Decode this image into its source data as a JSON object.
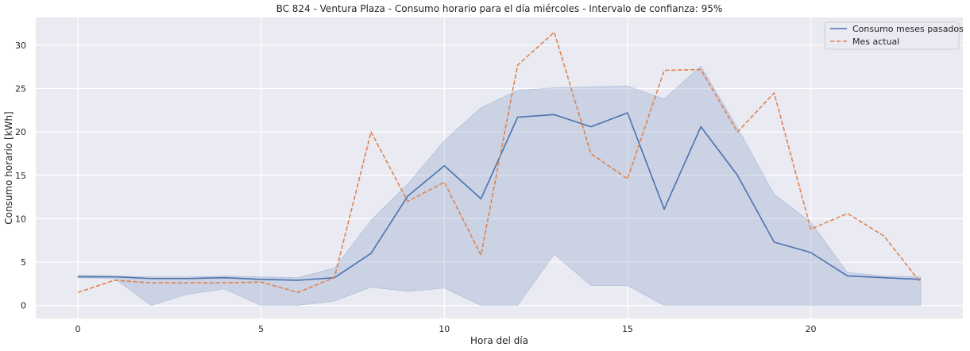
{
  "chart_data": {
    "type": "line",
    "title": "BC 824 - Ventura Plaza - Consumo horario para el día miércoles - Intervalo de confianza: 95%",
    "xlabel": "Hora del día",
    "ylabel": "Consumo horario [kWh]",
    "xlim": [
      -1.15,
      24.15
    ],
    "ylim": [
      -1.5,
      33.2
    ],
    "xticks": [
      0,
      5,
      10,
      15,
      20
    ],
    "yticks": [
      0,
      5,
      10,
      15,
      20,
      25,
      30
    ],
    "grid": true,
    "legend_position": "top-right",
    "x": [
      0,
      1,
      2,
      3,
      4,
      5,
      6,
      7,
      8,
      9,
      10,
      11,
      12,
      13,
      14,
      15,
      16,
      17,
      18,
      19,
      20,
      21,
      22,
      23
    ],
    "series": [
      {
        "name": "Consumo meses pasados",
        "style": "solid",
        "color": "#4c72b0",
        "values": [
          3.3,
          3.3,
          3.1,
          3.1,
          3.2,
          3.0,
          2.9,
          3.2,
          6.0,
          12.6,
          16.1,
          12.3,
          21.7,
          22.0,
          20.6,
          22.2,
          11.1,
          20.6,
          15.0,
          7.3,
          6.1,
          3.4,
          3.2,
          3.0
        ],
        "ci_lower": [
          3.2,
          3.1,
          0.0,
          1.3,
          1.9,
          0.0,
          0.0,
          0.5,
          2.1,
          1.6,
          2.0,
          0.0,
          0.0,
          5.9,
          2.3,
          2.3,
          0.0,
          0.0,
          0.0,
          0.0,
          0.0,
          0.0,
          0.0,
          0.0
        ],
        "ci_upper": [
          3.5,
          3.4,
          3.3,
          3.3,
          3.4,
          3.3,
          3.2,
          4.3,
          9.8,
          14.0,
          19.0,
          22.8,
          24.8,
          25.1,
          25.2,
          25.3,
          23.8,
          27.6,
          20.5,
          12.8,
          9.6,
          3.8,
          3.4,
          3.3
        ]
      },
      {
        "name": "Mes actual",
        "style": "dashed",
        "color": "#dd8452",
        "values": [
          1.5,
          2.9,
          2.6,
          2.6,
          2.6,
          2.7,
          1.5,
          3.2,
          20.0,
          12.0,
          14.2,
          5.8,
          27.7,
          31.5,
          17.5,
          14.6,
          27.1,
          27.2,
          20.0,
          24.5,
          8.8,
          10.6,
          8.0,
          2.6
        ]
      }
    ]
  }
}
